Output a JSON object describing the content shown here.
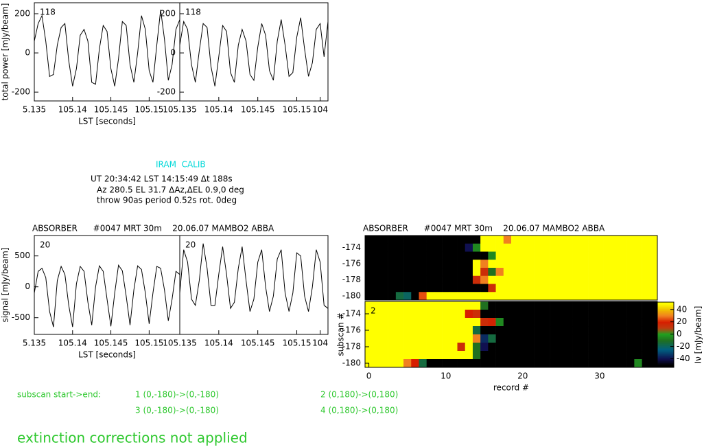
{
  "info": {
    "source": "IRAM  CALIB",
    "lines": [
      "UT 20:34:42 LST 14:15:49 Δt 188s",
      "Az 280.5 EL 31.7 ΔAz,ΔEL 0.9,0 deg",
      "throw 90as period 0.52s rot. 0deg"
    ]
  },
  "subscans": {
    "heading": "subscan start->end:",
    "items": [
      "1 (0,-180)->(0,-180)",
      "2 (0,180)->(0,180)",
      "3 (0,-180)->(0,-180)",
      "4 (0,180)->(0,180)"
    ]
  },
  "note": "extinction corrections not applied",
  "chart_data": [
    {
      "type": "line",
      "label": "118",
      "ylabel": "total power [mJy/beam]",
      "xlabel": "LST [seconds]",
      "color": "#000000",
      "xlim": [
        51350,
        51540
      ],
      "ylim": [
        -245,
        256
      ],
      "yticks": [
        -200,
        0,
        200
      ],
      "xticks": [
        {
          "value": 51350,
          "label": "5.135"
        },
        {
          "value": 51400,
          "label": "105.14"
        },
        {
          "value": 51450,
          "label": "105.145"
        },
        {
          "value": 51500,
          "label": "105.15"
        },
        {
          "value": 51540,
          "label": "105.135"
        }
      ],
      "x": [
        51350,
        51355,
        51360,
        51365,
        51370,
        51375,
        51380,
        51385,
        51390,
        51395,
        51400,
        51405,
        51410,
        51415,
        51420,
        51425,
        51430,
        51435,
        51440,
        51445,
        51450,
        51455,
        51460,
        51465,
        51470,
        51475,
        51480,
        51485,
        51490,
        51495,
        51500,
        51505,
        51510,
        51515,
        51520,
        51525,
        51530,
        51535,
        51540
      ],
      "values": [
        60,
        150,
        190,
        60,
        -120,
        -110,
        40,
        130,
        150,
        -40,
        -170,
        -80,
        90,
        120,
        60,
        -150,
        -160,
        20,
        140,
        110,
        -80,
        -170,
        -30,
        160,
        140,
        -60,
        -150,
        0,
        190,
        120,
        -90,
        -150,
        40,
        220,
        70,
        -140,
        -60,
        120,
        170
      ]
    },
    {
      "type": "line",
      "label": "118",
      "color": "#000000",
      "xlim": [
        51350,
        51540
      ],
      "ylim": [
        -245,
        256
      ],
      "yticks": [
        -200,
        0,
        200
      ],
      "xticks": [
        {
          "value": 51400,
          "label": "105.14"
        },
        {
          "value": 51450,
          "label": "105.145"
        },
        {
          "value": 51500,
          "label": "105.15"
        },
        {
          "value": 51530,
          "label": "104"
        }
      ],
      "x": [
        51350,
        51355,
        51360,
        51365,
        51370,
        51375,
        51380,
        51385,
        51390,
        51395,
        51400,
        51405,
        51410,
        51415,
        51420,
        51425,
        51430,
        51435,
        51440,
        51445,
        51450,
        51455,
        51460,
        51465,
        51470,
        51475,
        51480,
        51485,
        51490,
        51495,
        51500,
        51505,
        51510,
        51515,
        51520,
        51525,
        51530,
        51535,
        51540
      ],
      "values": [
        40,
        160,
        120,
        -60,
        -150,
        10,
        150,
        130,
        -70,
        -170,
        -20,
        140,
        110,
        -100,
        -150,
        40,
        120,
        60,
        -110,
        -140,
        30,
        150,
        90,
        -90,
        -140,
        60,
        170,
        40,
        -120,
        -100,
        80,
        180,
        20,
        -120,
        -50,
        120,
        150,
        -20,
        160
      ]
    },
    {
      "type": "line",
      "title": "ABSORBER      #0047 MRT 30m    20.06.07 MAMBO2 ABBA",
      "label": "20",
      "ylabel": "signal [mJy/beam]",
      "xlabel": "LST [seconds]",
      "color": "#000000",
      "xlim": [
        51350,
        51540
      ],
      "ylim": [
        -770,
        830
      ],
      "yticks": [
        -500,
        0,
        500
      ],
      "xticks": [
        {
          "value": 51350,
          "label": "5.135"
        },
        {
          "value": 51400,
          "label": "105.14"
        },
        {
          "value": 51450,
          "label": "105.145"
        },
        {
          "value": 51500,
          "label": "105.15"
        },
        {
          "value": 51540,
          "label": "105.135"
        }
      ],
      "x": [
        51350,
        51355,
        51360,
        51365,
        51370,
        51375,
        51380,
        51385,
        51390,
        51395,
        51400,
        51405,
        51410,
        51415,
        51420,
        51425,
        51430,
        51435,
        51440,
        51445,
        51450,
        51455,
        51460,
        51465,
        51470,
        51475,
        51480,
        51485,
        51490,
        51495,
        51500,
        51505,
        51510,
        51515,
        51520,
        51525,
        51530,
        51535,
        51540
      ],
      "values": [
        -100,
        250,
        300,
        150,
        -400,
        -650,
        100,
        330,
        200,
        -300,
        -650,
        50,
        330,
        250,
        -250,
        -620,
        0,
        340,
        250,
        -200,
        -640,
        -100,
        350,
        260,
        -150,
        -620,
        -50,
        340,
        280,
        -100,
        -600,
        -100,
        330,
        300,
        -50,
        -550,
        -200,
        250,
        200
      ]
    },
    {
      "type": "line",
      "label": "20",
      "color": "#000000",
      "xlim": [
        51350,
        51540
      ],
      "ylim": [
        -770,
        830
      ],
      "yticks": [],
      "xticks": [
        {
          "value": 51400,
          "label": "105.14"
        },
        {
          "value": 51450,
          "label": "105.145"
        },
        {
          "value": 51500,
          "label": "105.15"
        },
        {
          "value": 51530,
          "label": "104"
        }
      ],
      "x": [
        51350,
        51355,
        51360,
        51365,
        51370,
        51375,
        51380,
        51385,
        51390,
        51395,
        51400,
        51405,
        51410,
        51415,
        51420,
        51425,
        51430,
        51435,
        51440,
        51445,
        51450,
        51455,
        51460,
        51465,
        51470,
        51475,
        51480,
        51485,
        51490,
        51495,
        51500,
        51505,
        51510,
        51515,
        51520,
        51525,
        51530,
        51535,
        51540
      ],
      "values": [
        -100,
        600,
        400,
        -200,
        -300,
        100,
        700,
        300,
        -300,
        -300,
        200,
        650,
        200,
        -350,
        -250,
        300,
        650,
        100,
        -400,
        -200,
        400,
        600,
        0,
        -400,
        -150,
        450,
        600,
        -100,
        -400,
        -100,
        550,
        500,
        -150,
        -400,
        0,
        600,
        400,
        -300,
        -350
      ]
    },
    {
      "type": "heatmap",
      "title": "ABSORBER      #0047 MRT 30m    20.06.07 MAMBO2 ABBA",
      "xlim": [
        -0.5,
        37.5
      ],
      "ylim": [
        -180.5,
        -172.5
      ],
      "yticks": [
        -174,
        -176,
        -178,
        -180
      ],
      "xticks": [],
      "clim": [
        -54,
        52
      ],
      "x": [
        0,
        1,
        2,
        3,
        4,
        5,
        6,
        7,
        8,
        9,
        10,
        11,
        12,
        13,
        14,
        15,
        16,
        17,
        18,
        19,
        20,
        21,
        22,
        23,
        24,
        25,
        26,
        27,
        28,
        29,
        30,
        31,
        32,
        33,
        34,
        35,
        36,
        37
      ],
      "y": [
        -173,
        -174,
        -175,
        -176,
        -177,
        -178,
        -179,
        -180
      ],
      "values": [
        [
          -50,
          -50,
          -50,
          -50,
          -50,
          -50,
          -50,
          -50,
          -50,
          -50,
          -50,
          -50,
          -50,
          -50,
          -50,
          50,
          50,
          50,
          30,
          50,
          50,
          50,
          50,
          50,
          50,
          50,
          50,
          50,
          50,
          50,
          50,
          50,
          50,
          50,
          50,
          50,
          50,
          50
        ],
        [
          -50,
          -50,
          -50,
          -50,
          -50,
          -50,
          -50,
          -50,
          -50,
          -50,
          -50,
          -50,
          -50,
          -40,
          -5,
          50,
          50,
          50,
          50,
          50,
          50,
          50,
          50,
          50,
          50,
          50,
          50,
          50,
          50,
          50,
          50,
          50,
          50,
          50,
          50,
          50,
          50,
          50
        ],
        [
          -50,
          -50,
          -50,
          -50,
          -50,
          -50,
          -50,
          -50,
          -50,
          -50,
          -50,
          -50,
          -50,
          -50,
          -50,
          -50,
          -5,
          50,
          50,
          50,
          50,
          50,
          50,
          50,
          50,
          50,
          50,
          50,
          50,
          50,
          50,
          50,
          50,
          50,
          50,
          50,
          50,
          50
        ],
        [
          -50,
          -50,
          -50,
          -50,
          -50,
          -50,
          -50,
          -50,
          -50,
          -50,
          -50,
          -50,
          -50,
          -50,
          50,
          30,
          50,
          50,
          50,
          50,
          50,
          50,
          50,
          50,
          50,
          50,
          50,
          50,
          50,
          50,
          50,
          50,
          50,
          50,
          50,
          50,
          50,
          50
        ],
        [
          -50,
          -50,
          -50,
          -50,
          -50,
          -50,
          -50,
          -50,
          -50,
          -50,
          -50,
          -50,
          -50,
          -50,
          50,
          15,
          -10,
          30,
          50,
          50,
          50,
          50,
          50,
          50,
          50,
          50,
          50,
          50,
          50,
          50,
          50,
          50,
          50,
          50,
          50,
          50,
          50,
          50
        ],
        [
          -50,
          -50,
          -50,
          -50,
          -50,
          -50,
          -50,
          -50,
          -50,
          -50,
          -50,
          -50,
          -50,
          -50,
          15,
          30,
          50,
          50,
          50,
          50,
          50,
          50,
          50,
          50,
          50,
          50,
          50,
          50,
          50,
          50,
          50,
          50,
          50,
          50,
          50,
          50,
          50,
          50
        ],
        [
          -50,
          -50,
          -50,
          -50,
          -50,
          -50,
          -50,
          -50,
          -50,
          -50,
          -50,
          -50,
          -50,
          -50,
          -50,
          -50,
          15,
          50,
          50,
          50,
          50,
          50,
          50,
          50,
          50,
          50,
          50,
          50,
          50,
          50,
          50,
          50,
          50,
          50,
          50,
          50,
          50,
          50
        ],
        [
          -50,
          -50,
          -50,
          -50,
          -15,
          -20,
          -50,
          25,
          50,
          50,
          50,
          50,
          50,
          50,
          50,
          50,
          50,
          50,
          50,
          50,
          50,
          50,
          50,
          50,
          50,
          50,
          50,
          50,
          50,
          50,
          50,
          50,
          50,
          50,
          50,
          50,
          50,
          50
        ]
      ]
    },
    {
      "type": "heatmap",
      "label": "2",
      "ylabel": "subscan #",
      "xlabel": "record #",
      "clabel": "Iν [mJy/beam]",
      "xlim": [
        -0.5,
        37.5
      ],
      "ylim": [
        -180.5,
        -172.5
      ],
      "yticks": [
        -174,
        -176,
        -178,
        -180
      ],
      "xticks": [
        0,
        10,
        20,
        30
      ],
      "clim": [
        -54,
        52
      ],
      "cticks": [
        40,
        20,
        0,
        -20,
        -40
      ],
      "x": [
        0,
        1,
        2,
        3,
        4,
        5,
        6,
        7,
        8,
        9,
        10,
        11,
        12,
        13,
        14,
        15,
        16,
        17,
        18,
        19,
        20,
        21,
        22,
        23,
        24,
        25,
        26,
        27,
        28,
        29,
        30,
        31,
        32,
        33,
        34,
        35,
        36,
        37
      ],
      "y": [
        -173,
        -174,
        -175,
        -176,
        -177,
        -178,
        -179,
        -180
      ],
      "values": [
        [
          50,
          50,
          50,
          50,
          50,
          50,
          50,
          50,
          50,
          50,
          50,
          50,
          50,
          50,
          50,
          -10,
          -50,
          -50,
          -50,
          -50,
          -50,
          -50,
          -50,
          -50,
          -50,
          -50,
          -50,
          -50,
          -50,
          -50,
          -50,
          -50,
          -50,
          -50,
          -50,
          -50,
          -50,
          -50
        ],
        [
          50,
          50,
          50,
          50,
          50,
          50,
          50,
          50,
          50,
          50,
          50,
          50,
          50,
          20,
          15,
          -50,
          -50,
          -50,
          -50,
          -50,
          -50,
          -50,
          -50,
          -50,
          -50,
          -50,
          -50,
          -50,
          -50,
          -50,
          -50,
          -50,
          -50,
          -50,
          -50,
          -50,
          -50,
          -50
        ],
        [
          50,
          50,
          50,
          50,
          50,
          50,
          50,
          50,
          50,
          50,
          50,
          50,
          50,
          50,
          50,
          15,
          18,
          -5,
          -50,
          -50,
          -50,
          -50,
          -50,
          -50,
          -50,
          -50,
          -50,
          -50,
          -50,
          -50,
          -50,
          -50,
          -50,
          -50,
          -50,
          -50,
          -50,
          -50
        ],
        [
          50,
          50,
          50,
          50,
          50,
          50,
          50,
          50,
          50,
          50,
          50,
          50,
          50,
          50,
          -15,
          -50,
          -50,
          -50,
          -50,
          -50,
          -50,
          -50,
          -50,
          -50,
          -50,
          -50,
          -50,
          -50,
          -50,
          -50,
          -50,
          -50,
          -50,
          -50,
          -50,
          -50,
          -50,
          -50
        ],
        [
          50,
          50,
          50,
          50,
          50,
          50,
          50,
          50,
          50,
          50,
          50,
          50,
          50,
          50,
          30,
          -35,
          -15,
          -50,
          -50,
          -50,
          -50,
          -50,
          -50,
          -50,
          -50,
          -50,
          -50,
          -50,
          -50,
          -50,
          -50,
          -50,
          -50,
          -50,
          -50,
          -50,
          -50,
          -50
        ],
        [
          50,
          50,
          50,
          50,
          50,
          50,
          50,
          50,
          50,
          50,
          50,
          50,
          15,
          50,
          -10,
          -40,
          -50,
          -50,
          -50,
          -50,
          -50,
          -50,
          -50,
          -50,
          -50,
          -50,
          -50,
          -50,
          -50,
          -50,
          -50,
          -50,
          -50,
          -50,
          -50,
          -50,
          -50,
          -50
        ],
        [
          50,
          50,
          50,
          50,
          50,
          50,
          50,
          50,
          50,
          50,
          50,
          50,
          50,
          50,
          -10,
          -50,
          -50,
          -50,
          -50,
          -50,
          -50,
          -50,
          -50,
          -50,
          -50,
          -50,
          -50,
          -50,
          -50,
          -50,
          -50,
          -50,
          -50,
          -50,
          -50,
          -50,
          -50,
          -50
        ],
        [
          50,
          50,
          50,
          50,
          50,
          30,
          20,
          -15,
          -50,
          -50,
          -50,
          -50,
          -50,
          -50,
          -50,
          -50,
          -50,
          -50,
          -50,
          -50,
          -50,
          -50,
          -50,
          -50,
          -50,
          -50,
          -50,
          -50,
          -50,
          -50,
          -50,
          -50,
          -50,
          -50,
          -50,
          -5,
          -50,
          -50
        ]
      ]
    }
  ]
}
